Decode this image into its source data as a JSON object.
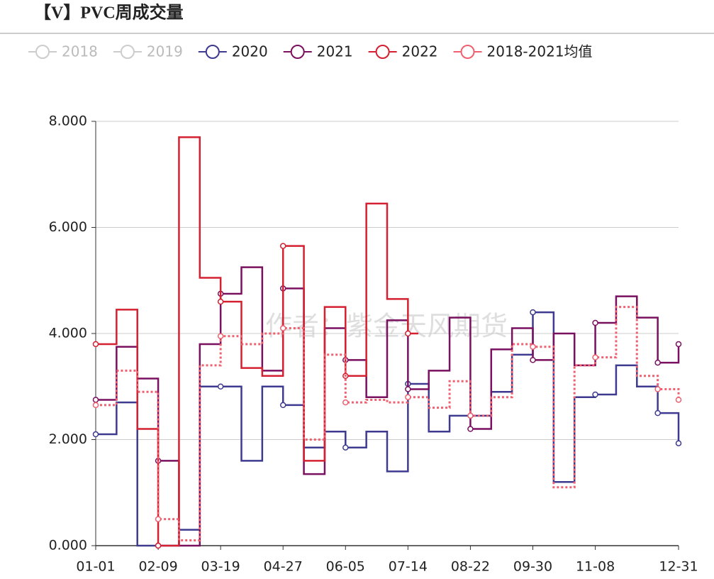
{
  "chart_data": {
    "type": "line",
    "step": true,
    "title": "【V】PVC周成交量",
    "watermark": "作者：紫金天风期货",
    "legend_inactive": [
      "2018",
      "2019"
    ],
    "categories": [
      "01-01",
      null,
      null,
      "02-09",
      null,
      null,
      "03-19",
      null,
      null,
      "04-27",
      null,
      null,
      "06-05",
      null,
      null,
      "07-14",
      null,
      null,
      "08-22",
      null,
      null,
      "09-30",
      null,
      null,
      "11-08",
      null,
      null,
      null,
      "12-31"
    ],
    "series": [
      {
        "name": "2020",
        "color": "#3d3a8f",
        "dashed": false,
        "values": [
          2.1,
          2.7,
          0,
          0,
          0.3,
          3.0,
          3.0,
          1.6,
          3.0,
          2.65,
          1.85,
          2.15,
          1.85,
          2.15,
          1.4,
          3.05,
          2.15,
          2.45,
          2.45,
          2.9,
          3.6,
          4.4,
          1.2,
          2.8,
          2.85,
          3.4,
          3.0,
          2.5,
          1.93
        ]
      },
      {
        "name": "2021",
        "color": "#7a1060",
        "dashed": false,
        "values": [
          2.75,
          3.75,
          3.15,
          1.6,
          0,
          3.8,
          4.75,
          5.25,
          3.3,
          4.85,
          1.35,
          4.1,
          3.5,
          2.8,
          4.25,
          2.95,
          3.3,
          4.3,
          2.2,
          3.7,
          4.1,
          3.5,
          4.0,
          3.4,
          4.2,
          4.7,
          4.3,
          3.45,
          3.8
        ]
      },
      {
        "name": "2022",
        "color": "#d42030",
        "dashed": false,
        "values": [
          3.8,
          4.45,
          2.2,
          0,
          7.7,
          5.05,
          4.6,
          3.35,
          3.2,
          5.65,
          1.6,
          4.5,
          3.2,
          6.45,
          4.65,
          4.0,
          null,
          null,
          null,
          null,
          null,
          null,
          null,
          null,
          null,
          null,
          null,
          null,
          null
        ]
      },
      {
        "name": "2018-2021均值",
        "color": "#ef6070",
        "dashed": true,
        "values": [
          2.65,
          3.3,
          2.9,
          0.5,
          0.1,
          3.4,
          3.95,
          3.8,
          4.0,
          4.1,
          2.0,
          3.6,
          2.7,
          2.75,
          2.7,
          2.8,
          2.6,
          3.1,
          2.45,
          2.8,
          3.8,
          3.75,
          1.1,
          3.4,
          3.55,
          4.5,
          3.2,
          2.95,
          2.75
        ]
      }
    ],
    "ylim": [
      0,
      8
    ],
    "yticks": [
      {
        "value": 0,
        "label": "0.000"
      },
      {
        "value": 2,
        "label": "2.000"
      },
      {
        "value": 4,
        "label": "4.000"
      },
      {
        "value": 6,
        "label": "6.000"
      },
      {
        "value": 8,
        "label": "8.000"
      }
    ],
    "grid": true
  }
}
